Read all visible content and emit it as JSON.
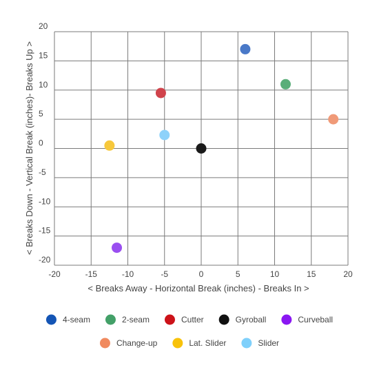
{
  "chart_data": {
    "type": "scatter",
    "xlabel": "< Breaks Away - Horizontal Break (inches) - Breaks In >",
    "ylabel": "< Breaks Down - Vertical Break (inches)- Breaks Up >",
    "xlim": [
      -20,
      20
    ],
    "ylim": [
      -20,
      20
    ],
    "x_ticks": [
      -20,
      -15,
      -10,
      -5,
      0,
      5,
      10,
      15,
      20
    ],
    "y_ticks": [
      20,
      15,
      10,
      5,
      0,
      -5,
      -10,
      -15,
      -20
    ],
    "grid": true,
    "legend_position": "bottom",
    "series": [
      {
        "name": "4-seam",
        "color": "#4a79c8",
        "legend_color": "#1455b5",
        "points": [
          {
            "x": 6,
            "y": 17
          }
        ]
      },
      {
        "name": "2-seam",
        "color": "#5aae79",
        "legend_color": "#43a068",
        "points": [
          {
            "x": 11.5,
            "y": 11
          }
        ]
      },
      {
        "name": "Cutter",
        "color": "#d0434b",
        "legend_color": "#cc1219",
        "points": [
          {
            "x": -5.5,
            "y": 9.5
          }
        ]
      },
      {
        "name": "Gyroball",
        "color": "#1a1a1a",
        "legend_color": "#111111",
        "points": [
          {
            "x": 0,
            "y": 0
          }
        ]
      },
      {
        "name": "Curveball",
        "color": "#9a4ff0",
        "legend_color": "#8a17f2",
        "points": [
          {
            "x": -11.5,
            "y": -17
          }
        ]
      },
      {
        "name": "Change-up",
        "color": "#f09a78",
        "legend_color": "#f08a5f",
        "points": [
          {
            "x": 18,
            "y": 5
          }
        ]
      },
      {
        "name": "Lat. Slider",
        "color": "#f7c83b",
        "legend_color": "#f8c20a",
        "points": [
          {
            "x": -12.5,
            "y": 0.5
          }
        ]
      },
      {
        "name": "Slider",
        "color": "#8ed2fa",
        "legend_color": "#7fd0fb",
        "points": [
          {
            "x": -5,
            "y": 2.3
          }
        ]
      }
    ]
  }
}
